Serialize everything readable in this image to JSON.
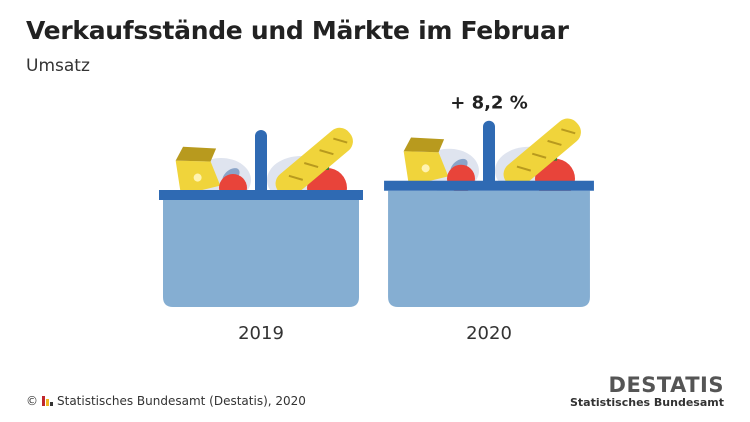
{
  "title": "Verkaufsstände und Märkte im Februar",
  "subtitle": "Umsatz",
  "chart_data": {
    "type": "bar",
    "title": "Verkaufsstände und Märkte im Februar",
    "subtitle": "Umsatz",
    "categories": [
      "2019",
      "2020"
    ],
    "values": [
      100,
      108.2
    ],
    "annotations": [
      {
        "category": "2020",
        "text": "+ 8,2 %"
      }
    ],
    "grid": false
  },
  "footer": {
    "copyright": "© ",
    "source": "Statistisches Bundesamt (Destatis), 2020"
  },
  "logo": {
    "wordmark": "DESTATIS",
    "subtitle": "Statistisches Bundesamt"
  },
  "colors": {
    "basket": "#85aed2",
    "rim": "#2f6ab3",
    "bread": "#f0d43b",
    "apple": "#e8443a",
    "plate": "#dfe4ef",
    "mini_bars": [
      "#c0272d",
      "#f1b623",
      "#333333"
    ]
  }
}
